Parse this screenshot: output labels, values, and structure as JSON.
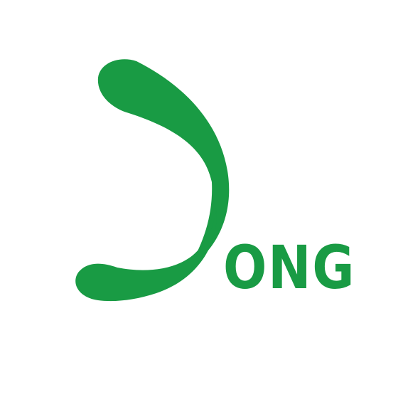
{
  "logo": {
    "wordmark": "ONG",
    "emblem_icon": "green-swoosh-d-icon",
    "brand_color": "#199b44",
    "background_color": "#ffffff"
  }
}
